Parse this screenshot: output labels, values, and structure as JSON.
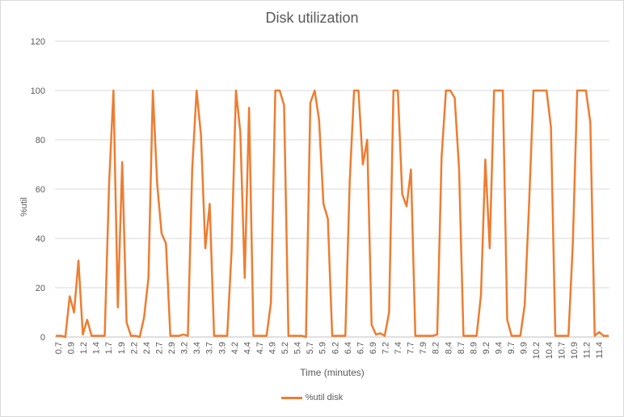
{
  "chart_data": {
    "type": "line",
    "title": "Disk utilization",
    "xlabel": "Time (minutes)",
    "ylabel": "%util",
    "ylim": [
      0,
      120
    ],
    "y_ticks": [
      0,
      20,
      40,
      60,
      80,
      100,
      120
    ],
    "x_tick_labels": [
      "0.7",
      "0.9",
      "1.2",
      "1.4",
      "1.7",
      "1.9",
      "2.2",
      "2.4",
      "2.7",
      "2.9",
      "3.2",
      "3.4",
      "3.7",
      "3.9",
      "4.2",
      "4.4",
      "4.7",
      "4.9",
      "5.2",
      "5.4",
      "5.7",
      "5.9",
      "6.2",
      "6.4",
      "6.7",
      "6.9",
      "7.2",
      "7.4",
      "7.7",
      "7.9",
      "8.2",
      "8.4",
      "8.7",
      "8.9",
      "9.2",
      "9.4",
      "9.7",
      "9.9",
      "10.2",
      "10.4",
      "10.7",
      "10.9",
      "11.2",
      "11.4"
    ],
    "grid": true,
    "legend_position": "bottom",
    "series": [
      {
        "name": "%util disk",
        "color": "#ed7d31",
        "values": [
          0.5,
          0.5,
          0,
          16.5,
          10,
          31,
          1,
          7,
          0.5,
          0.5,
          0.5,
          0.5,
          62,
          100,
          12,
          71,
          6,
          0.5,
          0.5,
          0,
          8,
          24,
          100,
          62,
          42,
          38,
          0.5,
          0.5,
          0.5,
          1,
          0.5,
          68,
          100,
          82,
          36,
          54,
          0.5,
          0.5,
          0.5,
          0.5,
          35,
          100,
          83,
          24,
          93,
          0.5,
          0.5,
          0.5,
          0.5,
          14,
          100,
          100,
          94,
          0.5,
          0.5,
          0.5,
          0.5,
          0,
          95,
          100,
          88,
          54,
          48,
          0.5,
          0.5,
          0.5,
          0.5,
          63,
          100,
          100,
          70,
          80,
          5,
          1,
          1.5,
          0.5,
          10,
          100,
          100,
          58,
          53,
          68,
          0.5,
          0.5,
          0.5,
          0.5,
          0.5,
          1,
          73,
          100,
          100,
          97,
          68,
          0.5,
          0.5,
          0.5,
          0.5,
          17,
          72,
          36,
          100,
          100,
          100,
          7,
          0.5,
          0.5,
          0.5,
          13,
          54,
          100,
          100,
          100,
          100,
          85,
          0.5,
          0.5,
          0.5,
          0.5,
          38,
          100,
          100,
          100,
          87,
          0.5,
          2,
          0.5,
          0.5
        ]
      }
    ]
  }
}
